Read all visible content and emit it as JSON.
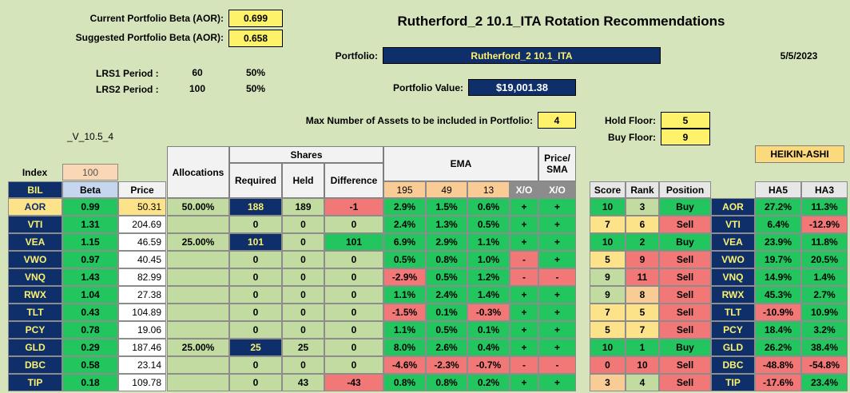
{
  "header": {
    "current_beta_label": "Current Portfolio Beta (AOR):",
    "current_beta_value": "0.699",
    "suggested_beta_label": "Suggested Portfolio Beta (AOR):",
    "suggested_beta_value": "0.658",
    "title": "Rutherford_2 10.1_ITA Rotation Recommendations",
    "portfolio_label": "Portfolio:",
    "portfolio_name": "Rutherford_2 10.1_ITA",
    "date": "5/5/2023",
    "lrs1_label": "LRS1 Period :",
    "lrs1_period": "60",
    "lrs1_pct": "50%",
    "lrs2_label": "LRS2 Period :",
    "lrs2_period": "100",
    "lrs2_pct": "50%",
    "portfolio_value_label": "Portfolio Value:",
    "portfolio_value": "$19,001.38",
    "max_assets_label": "Max Number of Assets to be included in Portfolio:",
    "max_assets_value": "4",
    "hold_floor_label": "Hold Floor:",
    "hold_floor_value": "5",
    "buy_floor_label": "Buy Floor:",
    "buy_floor_value": "9",
    "version": "_V_10.5_4",
    "heikin_label": "HEIKIN-ASHI"
  },
  "table_headers": {
    "index": "Index",
    "index_value": "100",
    "bil": "BIL",
    "beta": "Beta",
    "price": "Price",
    "allocations": "Allocations",
    "shares": "Shares",
    "required": "Required",
    "held": "Held",
    "difference": "Difference",
    "ema": "EMA",
    "ema195": "195",
    "ema49": "49",
    "ema13": "13",
    "xo": "X/O",
    "price_sma": "Price/ SMA",
    "xo2": "X/O",
    "score": "Score",
    "rank": "Rank",
    "position": "Position",
    "ha5": "HA5",
    "ha3": "HA3"
  },
  "rows": [
    {
      "t": "AOR",
      "beta": "0.99",
      "price": "50.31",
      "alloc": "50.00%",
      "req": "188",
      "held": "189",
      "diff": "-1",
      "e195": "2.9%",
      "e49": "1.5%",
      "e13": "0.6%",
      "xo": "+",
      "sma": "+",
      "score": "10",
      "rank": "3",
      "pos": "Buy",
      "t2": "AOR",
      "ha5": "27.2%",
      "ha3": "11.3%"
    },
    {
      "t": "VTI",
      "beta": "1.31",
      "price": "204.69",
      "alloc": "",
      "req": "0",
      "held": "0",
      "diff": "0",
      "e195": "2.4%",
      "e49": "1.3%",
      "e13": "0.5%",
      "xo": "+",
      "sma": "+",
      "score": "7",
      "rank": "6",
      "pos": "Sell",
      "t2": "VTI",
      "ha5": "6.4%",
      "ha3": "-12.9%"
    },
    {
      "t": "VEA",
      "beta": "1.15",
      "price": "46.59",
      "alloc": "25.00%",
      "req": "101",
      "held": "0",
      "diff": "101",
      "e195": "6.9%",
      "e49": "2.9%",
      "e13": "1.1%",
      "xo": "+",
      "sma": "+",
      "score": "10",
      "rank": "2",
      "pos": "Buy",
      "t2": "VEA",
      "ha5": "23.9%",
      "ha3": "11.8%"
    },
    {
      "t": "VWO",
      "beta": "0.97",
      "price": "40.45",
      "alloc": "",
      "req": "0",
      "held": "0",
      "diff": "0",
      "e195": "0.5%",
      "e49": "0.8%",
      "e13": "1.0%",
      "xo": "-",
      "sma": "+",
      "score": "5",
      "rank": "9",
      "pos": "Sell",
      "t2": "VWO",
      "ha5": "19.7%",
      "ha3": "20.5%"
    },
    {
      "t": "VNQ",
      "beta": "1.43",
      "price": "82.99",
      "alloc": "",
      "req": "0",
      "held": "0",
      "diff": "0",
      "e195": "-2.9%",
      "e49": "0.5%",
      "e13": "1.2%",
      "xo": "-",
      "sma": "-",
      "score": "9",
      "rank": "11",
      "pos": "Sell",
      "t2": "VNQ",
      "ha5": "14.9%",
      "ha3": "1.4%"
    },
    {
      "t": "RWX",
      "beta": "1.04",
      "price": "27.38",
      "alloc": "",
      "req": "0",
      "held": "0",
      "diff": "0",
      "e195": "1.1%",
      "e49": "2.4%",
      "e13": "1.4%",
      "xo": "+",
      "sma": "+",
      "score": "9",
      "rank": "8",
      "pos": "Sell",
      "t2": "RWX",
      "ha5": "45.3%",
      "ha3": "2.7%"
    },
    {
      "t": "TLT",
      "beta": "0.43",
      "price": "104.89",
      "alloc": "",
      "req": "0",
      "held": "0",
      "diff": "0",
      "e195": "-1.5%",
      "e49": "0.1%",
      "e13": "-0.3%",
      "xo": "+",
      "sma": "+",
      "score": "7",
      "rank": "5",
      "pos": "Sell",
      "t2": "TLT",
      "ha5": "-10.9%",
      "ha3": "10.9%"
    },
    {
      "t": "PCY",
      "beta": "0.78",
      "price": "19.06",
      "alloc": "",
      "req": "0",
      "held": "0",
      "diff": "0",
      "e195": "1.1%",
      "e49": "0.5%",
      "e13": "0.1%",
      "xo": "+",
      "sma": "+",
      "score": "5",
      "rank": "7",
      "pos": "Sell",
      "t2": "PCY",
      "ha5": "18.4%",
      "ha3": "3.2%"
    },
    {
      "t": "GLD",
      "beta": "0.29",
      "price": "187.46",
      "alloc": "25.00%",
      "req": "25",
      "held": "25",
      "diff": "0",
      "e195": "8.0%",
      "e49": "2.6%",
      "e13": "0.4%",
      "xo": "+",
      "sma": "+",
      "score": "10",
      "rank": "1",
      "pos": "Buy",
      "t2": "GLD",
      "ha5": "26.2%",
      "ha3": "38.4%"
    },
    {
      "t": "DBC",
      "beta": "0.58",
      "price": "23.14",
      "alloc": "",
      "req": "0",
      "held": "0",
      "diff": "0",
      "e195": "-4.6%",
      "e49": "-2.3%",
      "e13": "-0.7%",
      "xo": "-",
      "sma": "-",
      "score": "0",
      "rank": "10",
      "pos": "Sell",
      "t2": "DBC",
      "ha5": "-48.8%",
      "ha3": "-54.8%"
    },
    {
      "t": "TIP",
      "beta": "0.18",
      "price": "109.78",
      "alloc": "",
      "req": "0",
      "held": "43",
      "diff": "-43",
      "e195": "0.8%",
      "e49": "0.8%",
      "e13": "0.2%",
      "xo": "+",
      "sma": "+",
      "score": "3",
      "rank": "4",
      "pos": "Sell",
      "t2": "TIP",
      "ha5": "-17.6%",
      "ha3": "23.4%"
    }
  ],
  "colors": {
    "background": "#d6e4bc",
    "navy": "#0f2f6b",
    "green": "#22c55e",
    "light_green": "#c2dba0",
    "red": "#f27878",
    "yellow": "#fdf26a",
    "pale_yellow": "#fce38a"
  }
}
